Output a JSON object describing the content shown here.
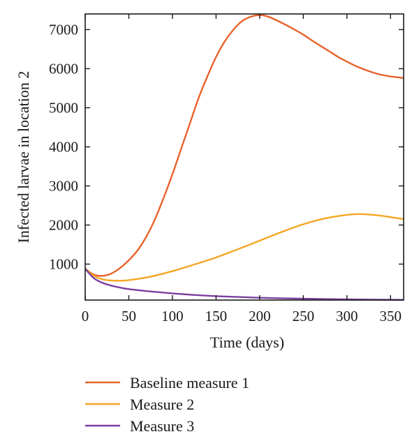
{
  "chart_data": {
    "type": "line",
    "title": "",
    "xlabel": "Time (days)",
    "ylabel": "Infected larvae in location 2",
    "xlim": [
      0,
      365
    ],
    "ylim": [
      80,
      7400
    ],
    "xticks": [
      0,
      50,
      100,
      150,
      200,
      250,
      300,
      350
    ],
    "yticks": [
      1000,
      2000,
      3000,
      4000,
      5000,
      6000,
      7000
    ],
    "grid": false,
    "legend_position": "bottom",
    "series": [
      {
        "name": "Baseline measure 1",
        "color": "#e8622a",
        "x": [
          0,
          10,
          20,
          30,
          40,
          50,
          60,
          70,
          80,
          90,
          100,
          110,
          120,
          130,
          140,
          150,
          160,
          170,
          180,
          190,
          200,
          210,
          220,
          230,
          240,
          250,
          260,
          270,
          280,
          290,
          300,
          310,
          320,
          330,
          340,
          350,
          365
        ],
        "y": [
          880,
          730,
          700,
          760,
          900,
          1100,
          1350,
          1700,
          2150,
          2700,
          3300,
          3950,
          4600,
          5250,
          5800,
          6300,
          6700,
          7000,
          7220,
          7330,
          7370,
          7330,
          7230,
          7120,
          7000,
          6870,
          6720,
          6580,
          6440,
          6300,
          6180,
          6070,
          5980,
          5900,
          5840,
          5800,
          5760
        ]
      },
      {
        "name": "Measure 2",
        "color": "#f5a623",
        "x": [
          0,
          10,
          20,
          30,
          40,
          50,
          75,
          100,
          125,
          150,
          175,
          200,
          225,
          250,
          275,
          300,
          315,
          330,
          345,
          365
        ],
        "y": [
          880,
          700,
          610,
          580,
          575,
          590,
          680,
          820,
          990,
          1170,
          1380,
          1600,
          1820,
          2020,
          2170,
          2260,
          2280,
          2260,
          2220,
          2150
        ]
      },
      {
        "name": "Measure 3",
        "color": "#7b3fa0",
        "x": [
          0,
          10,
          20,
          30,
          40,
          50,
          75,
          100,
          125,
          150,
          175,
          200,
          225,
          250,
          275,
          300,
          325,
          350,
          365
        ],
        "y": [
          880,
          640,
          520,
          450,
          400,
          360,
          300,
          250,
          210,
          180,
          160,
          140,
          125,
          115,
          105,
          98,
          92,
          88,
          85
        ]
      }
    ]
  }
}
